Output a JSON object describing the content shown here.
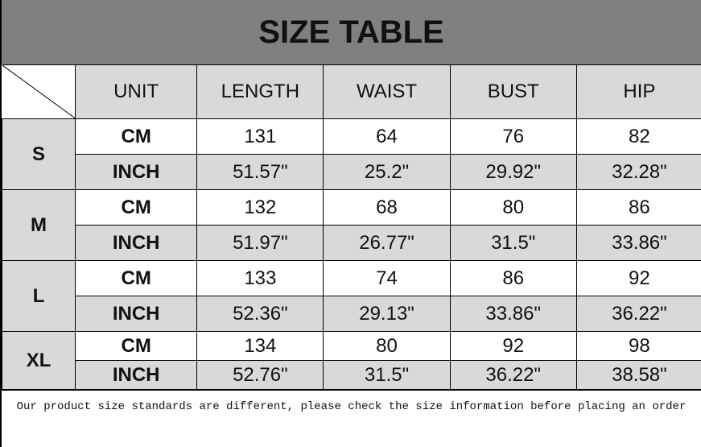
{
  "title": "SIZE TABLE",
  "columns": [
    "UNIT",
    "LENGTH",
    "WAIST",
    "BUST",
    "HIP"
  ],
  "sizes": [
    {
      "size": "S",
      "rows": [
        {
          "unit": "CM",
          "values": [
            "131",
            "64",
            "76",
            "82"
          ]
        },
        {
          "unit": "INCH",
          "values": [
            "51.57\"",
            "25.2\"",
            "29.92\"",
            "32.28\""
          ]
        }
      ]
    },
    {
      "size": "M",
      "rows": [
        {
          "unit": "CM",
          "values": [
            "132",
            "68",
            "80",
            "86"
          ]
        },
        {
          "unit": "INCH",
          "values": [
            "51.97\"",
            "26.77\"",
            "31.5\"",
            "33.86\""
          ]
        }
      ]
    },
    {
      "size": "L",
      "rows": [
        {
          "unit": "CM",
          "values": [
            "133",
            "74",
            "86",
            "92"
          ]
        },
        {
          "unit": "INCH",
          "values": [
            "52.36\"",
            "29.13\"",
            "33.86\"",
            "36.22\""
          ]
        }
      ]
    },
    {
      "size": "XL",
      "rows": [
        {
          "unit": "CM",
          "values": [
            "134",
            "80",
            "92",
            "98"
          ]
        },
        {
          "unit": "INCH",
          "values": [
            "52.76\"",
            "31.5\"",
            "36.22\"",
            "38.58\""
          ]
        }
      ]
    }
  ],
  "note": "Our product size standards are different, please check the size information before placing an order",
  "colors": {
    "title_bg": "#808080",
    "shade": "#d9d9d9"
  }
}
